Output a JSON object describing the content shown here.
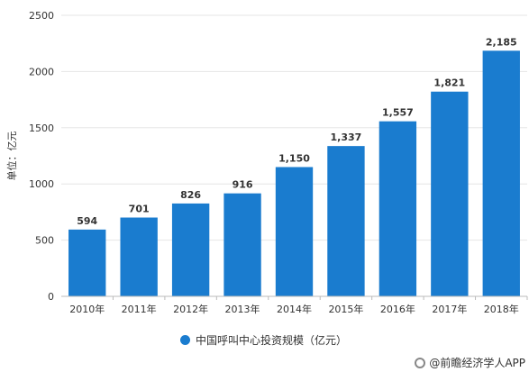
{
  "chart_data": {
    "type": "bar",
    "categories": [
      "2010年",
      "2011年",
      "2012年",
      "2013年",
      "2014年",
      "2015年",
      "2016年",
      "2017年",
      "2018年"
    ],
    "values": [
      594,
      701,
      826,
      916,
      1150,
      1337,
      1557,
      1821,
      2185
    ],
    "data_labels": [
      "594",
      "701",
      "826",
      "916",
      "1,150",
      "1,337",
      "1,557",
      "1,821",
      "2,185"
    ],
    "ylabel": "单位：亿元",
    "ylim": [
      0,
      2500
    ],
    "yticks": [
      0,
      500,
      1000,
      1500,
      2000,
      2500
    ],
    "grid": true,
    "legend": {
      "position": "bottom",
      "entries": [
        "中国呼叫中心投资规模（亿元）"
      ]
    },
    "bar_color": "#1a7ccf"
  },
  "source": {
    "text": "@前瞻经济学人APP"
  }
}
